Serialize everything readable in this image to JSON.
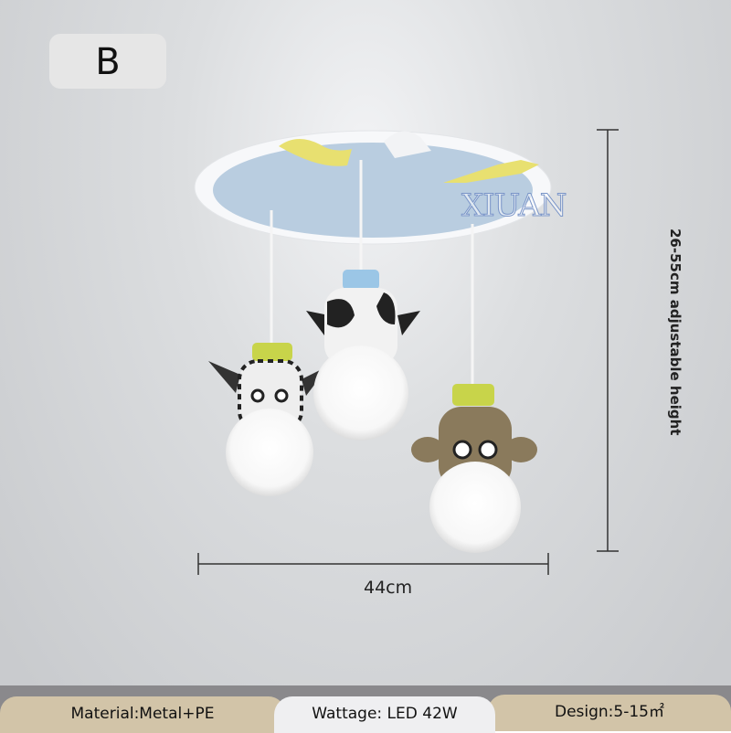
{
  "variant_label": "B",
  "watermark": "XIUAN",
  "dimensions": {
    "width": "44cm",
    "height": "26-55cm adjustable height"
  },
  "specs": {
    "material": "Material:Metal+PE",
    "wattage": "Wattage: LED 42W",
    "design": "Design:5-15㎡"
  }
}
